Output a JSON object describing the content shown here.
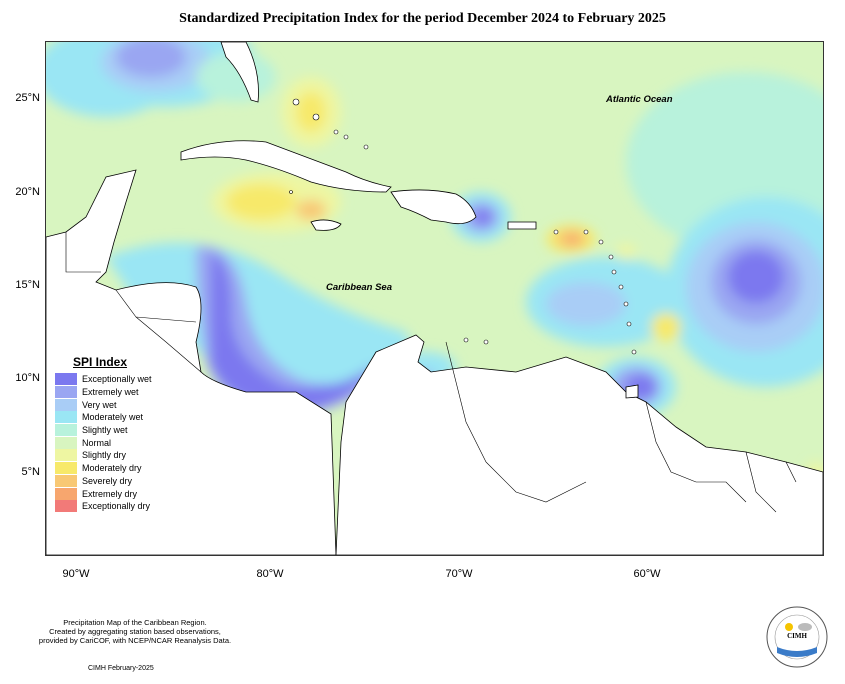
{
  "title": "Standardized Precipitation Index for the period December 2024 to February 2025",
  "map": {
    "labels": {
      "atlantic": "Atlantic Ocean",
      "caribbean": "Caribbean Sea"
    },
    "lat_ticks": [
      "25°N",
      "20°N",
      "15°N",
      "10°N",
      "5°N"
    ],
    "lon_ticks": [
      "90°W",
      "80°W",
      "70°W",
      "60°W"
    ]
  },
  "legend": {
    "title": "SPI Index",
    "items": [
      {
        "label": "Exceptionally wet",
        "color": "#7b78ef"
      },
      {
        "label": "Extremely wet",
        "color": "#9aa6f2"
      },
      {
        "label": "Very wet",
        "color": "#a9cdf6"
      },
      {
        "label": "Moderately wet",
        "color": "#9ae6f4"
      },
      {
        "label": "Slightly wet",
        "color": "#b8f2dc"
      },
      {
        "label": "Normal",
        "color": "#d8f5c0"
      },
      {
        "label": "Slightly dry",
        "color": "#eef6a2"
      },
      {
        "label": "Moderately dry",
        "color": "#f7e96a"
      },
      {
        "label": "Severely dry",
        "color": "#f8c874"
      },
      {
        "label": "Extremely dry",
        "color": "#f7a66e"
      },
      {
        "label": "Exceptionally dry",
        "color": "#f27a78"
      }
    ]
  },
  "footer": {
    "line1": "Precipitation Map of the Caribbean Region.",
    "line2": "Created by aggregating station based observations,",
    "line3": "provided by CariCOF, with NCEP/NCAR Reanalysis Data.",
    "credit": "CIMH February-2025",
    "logo_text": "CIMH"
  }
}
